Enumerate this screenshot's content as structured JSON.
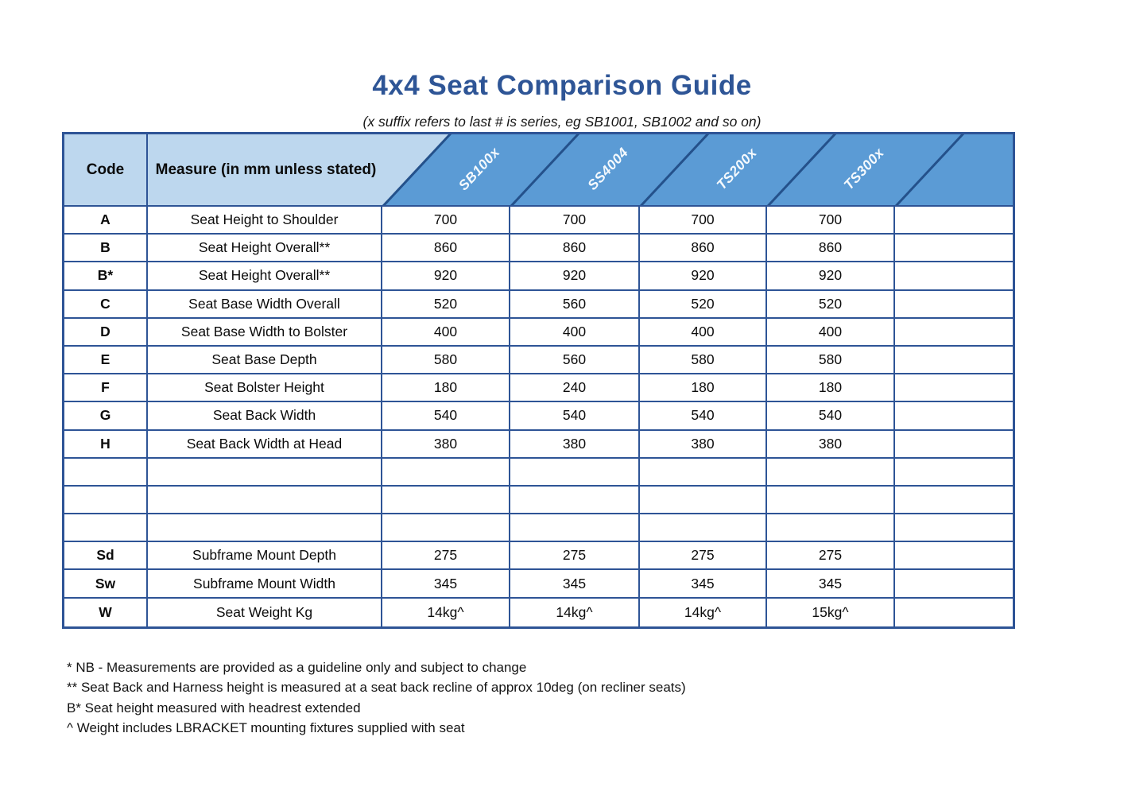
{
  "page": {
    "title": "4x4 Seat Comparison Guide",
    "subtitle": "(x suffix refers to last # is series, eg SB1001, SB1002 and so on)"
  },
  "table": {
    "code_header": "Code",
    "measure_header": "Measure (in mm unless stated)",
    "product_columns": [
      "SB100x",
      "SS4004",
      "TS200x",
      "TS300x",
      ""
    ],
    "rows": [
      {
        "code": "A",
        "measure": "Seat Height to Shoulder",
        "values": [
          "700",
          "700",
          "700",
          "700",
          ""
        ]
      },
      {
        "code": "B",
        "measure": "Seat Height Overall**",
        "values": [
          "860",
          "860",
          "860",
          "860",
          ""
        ]
      },
      {
        "code": "B*",
        "measure": "Seat Height Overall**",
        "values": [
          "920",
          "920",
          "920",
          "920",
          ""
        ]
      },
      {
        "code": "C",
        "measure": "Seat Base Width Overall",
        "values": [
          "520",
          "560",
          "520",
          "520",
          ""
        ]
      },
      {
        "code": "D",
        "measure": "Seat Base Width to Bolster",
        "values": [
          "400",
          "400",
          "400",
          "400",
          ""
        ]
      },
      {
        "code": "E",
        "measure": "Seat Base Depth",
        "values": [
          "580",
          "560",
          "580",
          "580",
          ""
        ]
      },
      {
        "code": "F",
        "measure": "Seat Bolster Height",
        "values": [
          "180",
          "240",
          "180",
          "180",
          ""
        ]
      },
      {
        "code": "G",
        "measure": "Seat Back Width",
        "values": [
          "540",
          "540",
          "540",
          "540",
          ""
        ]
      },
      {
        "code": "H",
        "measure": "Seat Back Width at Head",
        "values": [
          "380",
          "380",
          "380",
          "380",
          ""
        ]
      },
      {
        "code": "",
        "measure": "",
        "values": [
          "",
          "",
          "",
          "",
          ""
        ]
      },
      {
        "code": "",
        "measure": "",
        "values": [
          "",
          "",
          "",
          "",
          ""
        ]
      },
      {
        "code": "",
        "measure": "",
        "values": [
          "",
          "",
          "",
          "",
          ""
        ]
      },
      {
        "code": "Sd",
        "measure": "Subframe Mount Depth",
        "values": [
          "275",
          "275",
          "275",
          "275",
          ""
        ]
      },
      {
        "code": "Sw",
        "measure": "Subframe Mount Width",
        "values": [
          "345",
          "345",
          "345",
          "345",
          ""
        ]
      },
      {
        "code": "W",
        "measure": "Seat Weight Kg",
        "values": [
          "14kg^",
          "14kg^",
          "14kg^",
          "15kg^",
          ""
        ]
      }
    ]
  },
  "footnotes": [
    "* NB - Measurements are provided as a guideline only and subject to change",
    "** Seat Back and Harness height is measured at a seat back recline of approx 10deg (on recliner seats)",
    "B* Seat height measured with headrest extended",
    "^ Weight includes LBRACKET mounting fixtures supplied with seat"
  ],
  "colors": {
    "title_blue": "#2e5596",
    "header_light_blue": "#bdd7ee",
    "header_band_blue": "#5b9bd5",
    "grid_border_blue": "#2e5496",
    "diagonal_line_blue": "#24518b"
  }
}
